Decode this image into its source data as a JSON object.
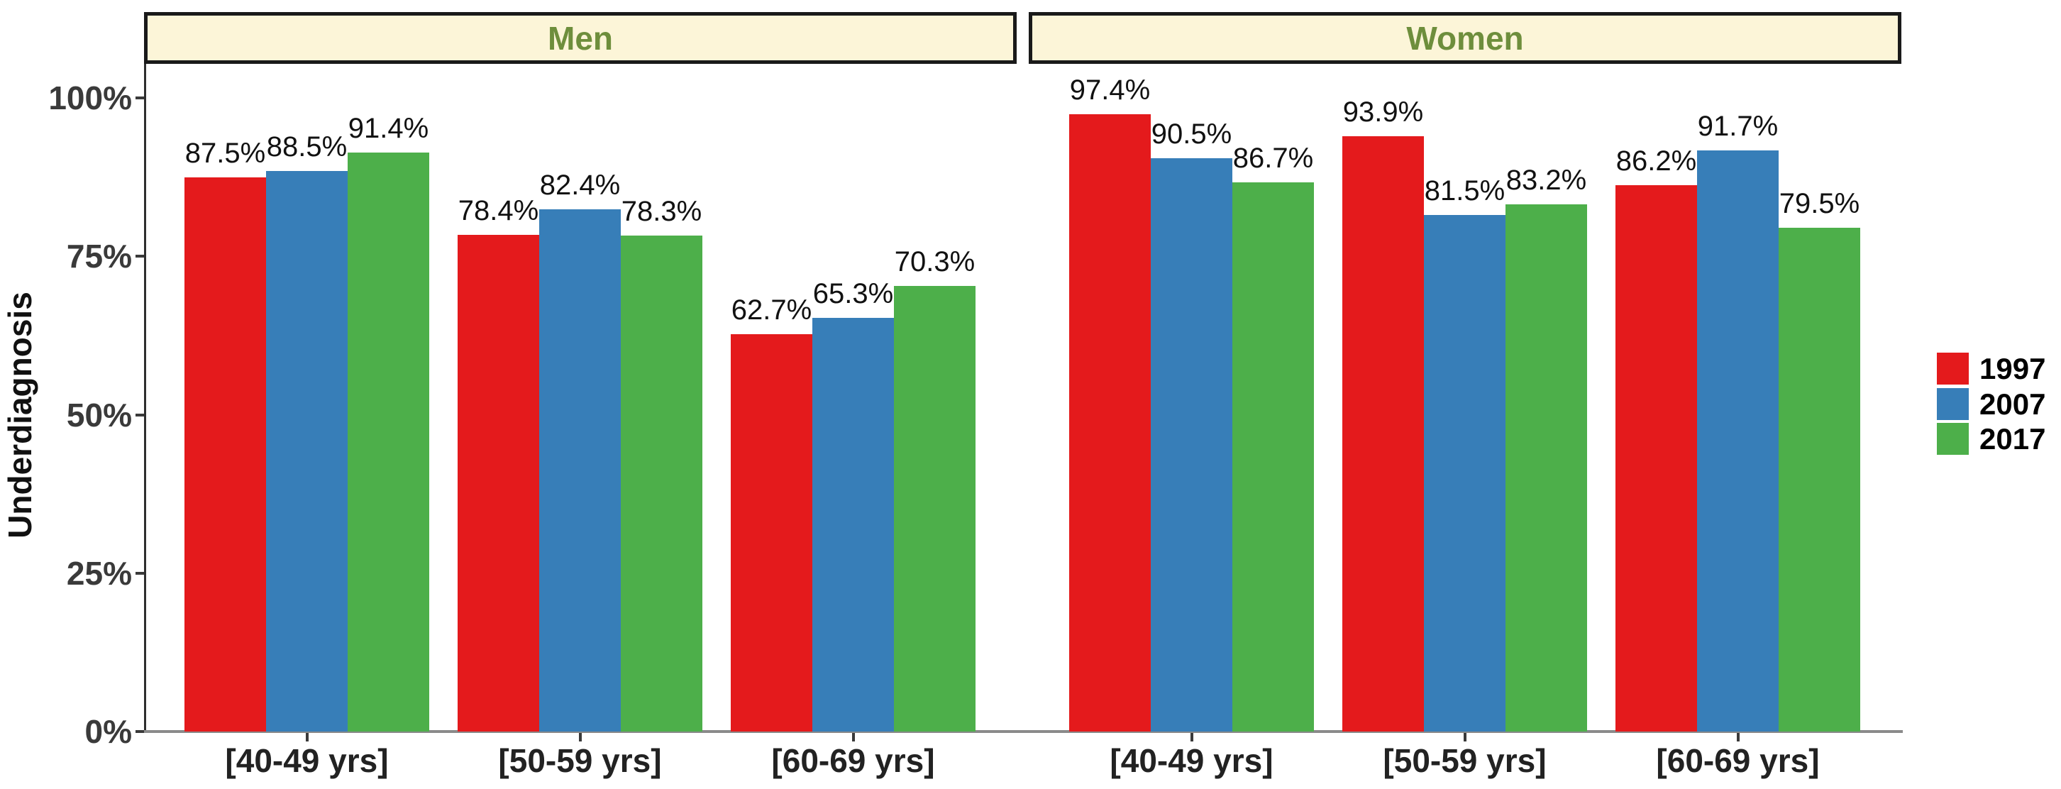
{
  "chart_data": {
    "type": "bar",
    "title": "",
    "ylabel": "Underdiagnosis",
    "xlabel": "",
    "grid": false,
    "y_axis": {
      "range": [
        0,
        100
      ],
      "tick_values": [
        0,
        25,
        50,
        75,
        100
      ],
      "tick_labels": [
        "0%",
        "25%",
        "50%",
        "75%",
        "100%"
      ]
    },
    "categories": [
      "[40-49 yrs]",
      "[50-59 yrs]",
      "[60-69 yrs]"
    ],
    "facets": [
      {
        "label": "Men",
        "series": [
          {
            "name": "1997",
            "values": [
              87.5,
              78.4,
              62.7
            ]
          },
          {
            "name": "2007",
            "values": [
              88.5,
              82.4,
              65.3
            ]
          },
          {
            "name": "2017",
            "values": [
              91.4,
              78.3,
              70.3
            ]
          }
        ]
      },
      {
        "label": "Women",
        "series": [
          {
            "name": "1997",
            "values": [
              97.4,
              93.9,
              86.2
            ]
          },
          {
            "name": "2007",
            "values": [
              90.5,
              81.5,
              91.7
            ]
          },
          {
            "name": "2017",
            "values": [
              86.7,
              83.2,
              79.5
            ]
          }
        ]
      }
    ],
    "legend": {
      "position": "right",
      "entries": [
        {
          "label": "1997",
          "color": "#E41A1C"
        },
        {
          "label": "2007",
          "color": "#377EB8"
        },
        {
          "label": "2017",
          "color": "#4DAF4A"
        }
      ]
    },
    "value_labels": {
      "shown": true,
      "format": "one_decimal_percent"
    }
  },
  "style": {
    "background": "#FFFFFF",
    "strip_fill": "#FCF5D8",
    "strip_text_color": "#6E8E3C",
    "strip_border_color": "#1A1A1A",
    "axis_text_color": "#3A3A3A",
    "x_category_text_color": "#222222",
    "value_label_color": "#111111",
    "y_axis_line_color": "#2E2E2E",
    "x_axis_line_color": "#8A8A8A",
    "legend_text_color": "#000000"
  }
}
